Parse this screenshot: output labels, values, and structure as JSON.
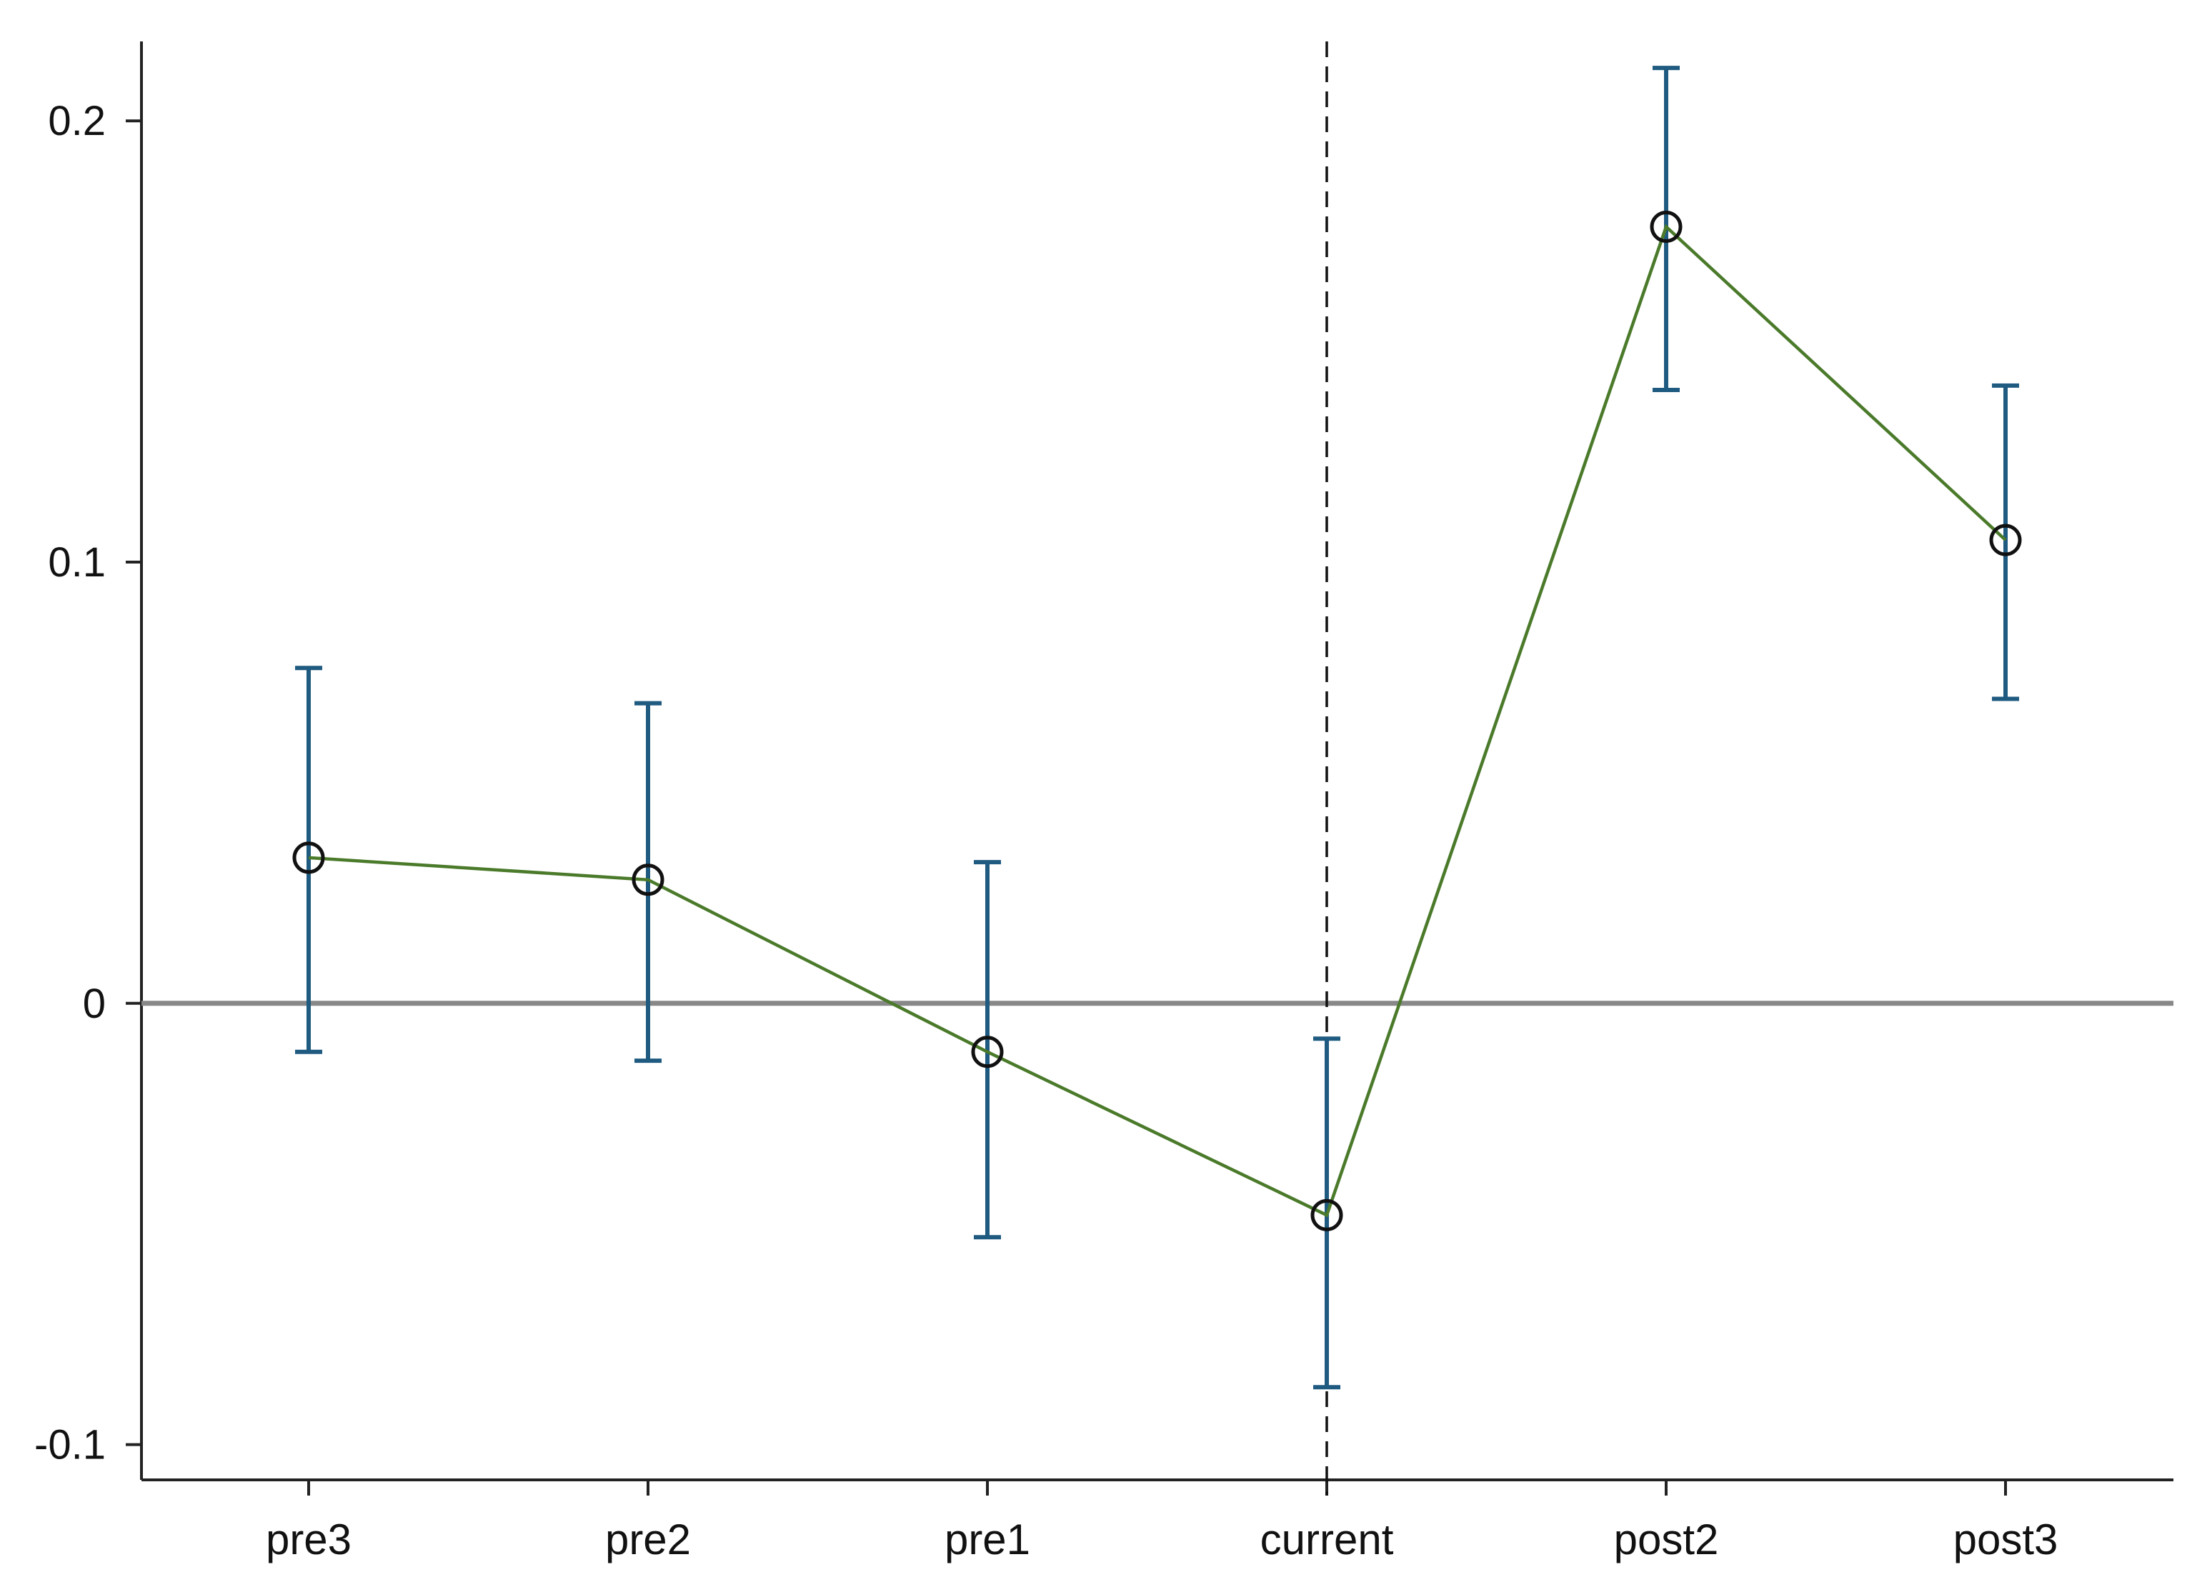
{
  "chart_data": {
    "type": "scatter",
    "title": "",
    "xlabel": "",
    "ylabel": "",
    "categories": [
      "pre3",
      "pre2",
      "pre1",
      "current",
      "post2",
      "post3"
    ],
    "series": [
      {
        "values": [
          0.033,
          0.028,
          -0.011,
          -0.048,
          0.176,
          0.105
        ],
        "ci_lower": [
          -0.011,
          -0.013,
          -0.053,
          -0.087,
          0.139,
          0.069
        ],
        "ci_upper": [
          0.076,
          0.068,
          0.032,
          -0.008,
          0.212,
          0.14
        ]
      }
    ],
    "y_ticks": [
      -0.1,
      0,
      0.1,
      0.2
    ],
    "y_tick_labels": [
      "-0.1",
      "0",
      "0.1",
      "0.2"
    ],
    "ylim": [
      -0.108,
      0.218
    ],
    "reference_lines": {
      "horizontal_y": 0,
      "vertical_category": "current"
    },
    "grid": false,
    "legend": "none",
    "colors": {
      "line": "#4a7a2a",
      "errorbar": "#1f5a80",
      "marker": "#111111",
      "zero_line": "#888888",
      "axis": "#222222"
    }
  }
}
